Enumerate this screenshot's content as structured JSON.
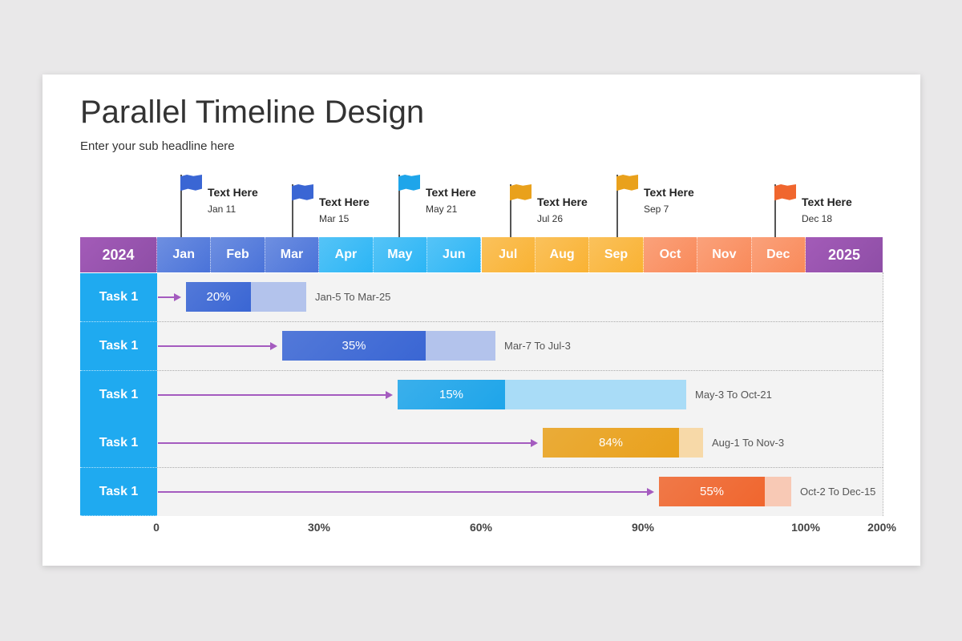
{
  "title": "Parallel Timeline Design",
  "subtitle": "Enter your sub headline here",
  "colors": {
    "year": "#9a55b0",
    "q1": "#4a73d9",
    "q2": "#2bb5f5",
    "q3": "#f9b233",
    "q4": "#f98a5a",
    "task": "#1faaf0",
    "arrow": "#a45bbf"
  },
  "chart_data": {
    "type": "gantt",
    "start_year": "2024",
    "end_year": "2025",
    "months": [
      "Jan",
      "Feb",
      "Mar",
      "Apr",
      "May",
      "Jun",
      "Jul",
      "Aug",
      "Sep",
      "Oct",
      "Nov",
      "Dec"
    ],
    "milestones": [
      {
        "label": "Text Here",
        "date": "Jan 11",
        "icon": "flag-icon",
        "color": "#3a66d4"
      },
      {
        "label": "Text Here",
        "date": "Mar 15",
        "icon": "flag-icon",
        "color": "#3a66d4"
      },
      {
        "label": "Text Here",
        "date": "May 21",
        "icon": "flag-icon",
        "color": "#1ea5ea"
      },
      {
        "label": "Text Here",
        "date": "Jul 26",
        "icon": "flag-icon",
        "color": "#e9a11c"
      },
      {
        "label": "Text Here",
        "date": "Sep 7",
        "icon": "flag-icon",
        "color": "#e9a11c"
      },
      {
        "label": "Text Here",
        "date": "Dec 18",
        "icon": "flag-icon",
        "color": "#f0662e"
      }
    ],
    "tasks": [
      {
        "name": "Task 1",
        "progress": "20%",
        "progress_value": 20,
        "range": "Jan-5 To Mar-25",
        "color": "#3a66d4",
        "light": "#b3c3ec"
      },
      {
        "name": "Task 1",
        "progress": "35%",
        "progress_value": 35,
        "range": "Mar-7 To Jul-3",
        "color": "#3a66d4",
        "light": "#b3c3ec"
      },
      {
        "name": "Task 1",
        "progress": "15%",
        "progress_value": 15,
        "range": "May-3 To Oct-21",
        "color": "#1ea5ea",
        "light": "#a9dcf7"
      },
      {
        "name": "Task 1",
        "progress": "84%",
        "progress_value": 84,
        "range": "Aug-1 To Nov-3",
        "color": "#e9a11c",
        "light": "#f7d9a8"
      },
      {
        "name": "Task 1",
        "progress": "55%",
        "progress_value": 55,
        "range": "Oct-2 To Dec-15",
        "color": "#f0662e",
        "light": "#f8c9b5"
      }
    ],
    "axis_labels": [
      "0",
      "30%",
      "60%",
      "90%",
      "100%",
      "200%"
    ]
  }
}
